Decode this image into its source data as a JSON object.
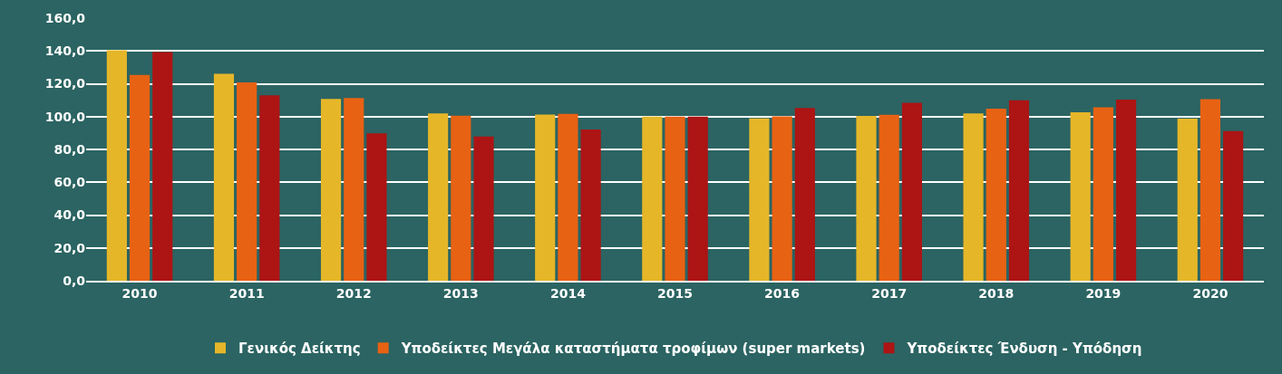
{
  "chart_data": {
    "type": "bar",
    "categories": [
      "2010",
      "2011",
      "2012",
      "2013",
      "2014",
      "2015",
      "2016",
      "2017",
      "2018",
      "2019",
      "2020"
    ],
    "series": [
      {
        "name": "Γενικός Δείκτης",
        "color": "#e6b629",
        "values": [
          140.4,
          126.1,
          110.8,
          101.9,
          101.3,
          100.0,
          98.9,
          100.4,
          101.9,
          102.6,
          98.7
        ]
      },
      {
        "name": "Υποδείκτες Μεγάλα καταστήματα τροφίμων (super markets)",
        "color": "#e86213",
        "values": [
          125.4,
          120.8,
          111.3,
          100.6,
          101.7,
          100.0,
          100.1,
          101.1,
          104.8,
          105.7,
          110.6
        ]
      },
      {
        "name": "Υποδείκτες Ένδυση - Υπόδηση",
        "color": "#ad1414",
        "values": [
          139.3,
          113.0,
          89.8,
          87.8,
          92.2,
          100.0,
          105.3,
          108.4,
          109.9,
          110.4,
          91.2
        ]
      }
    ],
    "ylim": [
      0,
      160
    ],
    "yticks": [
      {
        "value": 0,
        "label": "0,0"
      },
      {
        "value": 20,
        "label": "20,0"
      },
      {
        "value": 40,
        "label": "40,0"
      },
      {
        "value": 60,
        "label": "60,0"
      },
      {
        "value": 80,
        "label": "80,0"
      },
      {
        "value": 100,
        "label": "100,0"
      },
      {
        "value": 120,
        "label": "120,0"
      },
      {
        "value": 140,
        "label": "140,0"
      },
      {
        "value": 160,
        "label": "160,0"
      }
    ],
    "grid": "y",
    "legend": "bottom"
  }
}
